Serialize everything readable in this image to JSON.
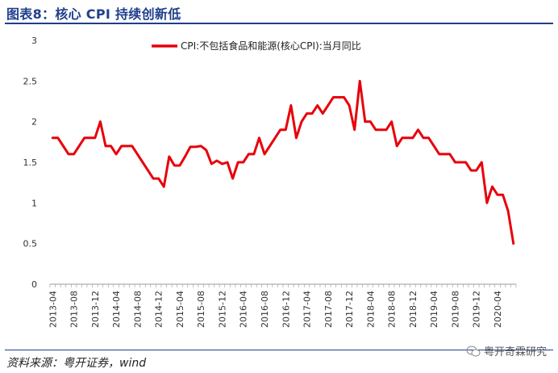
{
  "header": {
    "title": "图表8：核心 CPI 持续创新低"
  },
  "footer": {
    "source": "资料来源：粤开证券，wind",
    "watermark": "粤开奇霖研究"
  },
  "colors": {
    "title": "#1f3f8a",
    "series": "#e8000b"
  },
  "chart_data": {
    "type": "line",
    "ylim": [
      0,
      3
    ],
    "yticks": [
      0,
      0.5,
      1,
      1.5,
      2,
      2.5,
      3
    ],
    "grid": false,
    "legend_position": "top-center",
    "xlabel": "",
    "ylabel": "",
    "xtick_labels": [
      "2013-04",
      "2013-08",
      "2013-12",
      "2014-04",
      "2014-08",
      "2014-12",
      "2015-04",
      "2015-08",
      "2015-12",
      "2016-04",
      "2016-08",
      "2016-12",
      "2017-04",
      "2017-08",
      "2017-12",
      "2018-04",
      "2018-08",
      "2018-12",
      "2019-04",
      "2019-08",
      "2019-12",
      "2020-04"
    ],
    "x": [
      "2013-04",
      "2013-05",
      "2013-06",
      "2013-07",
      "2013-08",
      "2013-09",
      "2013-10",
      "2013-11",
      "2013-12",
      "2014-01",
      "2014-02",
      "2014-03",
      "2014-04",
      "2014-05",
      "2014-06",
      "2014-07",
      "2014-08",
      "2014-09",
      "2014-10",
      "2014-11",
      "2014-12",
      "2015-01",
      "2015-02",
      "2015-03",
      "2015-04",
      "2015-05",
      "2015-06",
      "2015-07",
      "2015-08",
      "2015-09",
      "2015-10",
      "2015-11",
      "2015-12",
      "2016-01",
      "2016-02",
      "2016-03",
      "2016-04",
      "2016-05",
      "2016-06",
      "2016-07",
      "2016-08",
      "2016-09",
      "2016-10",
      "2016-11",
      "2016-12",
      "2017-01",
      "2017-02",
      "2017-03",
      "2017-04",
      "2017-05",
      "2017-06",
      "2017-07",
      "2017-08",
      "2017-09",
      "2017-10",
      "2017-11",
      "2017-12",
      "2018-01",
      "2018-02",
      "2018-03",
      "2018-04",
      "2018-05",
      "2018-06",
      "2018-07",
      "2018-08",
      "2018-09",
      "2018-10",
      "2018-11",
      "2018-12",
      "2019-01",
      "2019-02",
      "2019-03",
      "2019-04",
      "2019-05",
      "2019-06",
      "2019-07",
      "2019-08",
      "2019-09",
      "2019-10",
      "2019-11",
      "2019-12",
      "2020-01",
      "2020-02",
      "2020-03",
      "2020-04",
      "2020-05",
      "2020-06",
      "2020-07"
    ],
    "series": [
      {
        "name": "CPI:不包括食品和能源(核心CPI):当月同比",
        "values": [
          1.8,
          1.8,
          1.7,
          1.6,
          1.6,
          1.7,
          1.8,
          1.8,
          1.8,
          2.0,
          1.7,
          1.7,
          1.6,
          1.7,
          1.7,
          1.7,
          1.6,
          1.5,
          1.4,
          1.3,
          1.3,
          1.2,
          1.57,
          1.46,
          1.46,
          1.57,
          1.69,
          1.69,
          1.7,
          1.65,
          1.48,
          1.52,
          1.48,
          1.5,
          1.3,
          1.5,
          1.5,
          1.6,
          1.6,
          1.8,
          1.6,
          1.7,
          1.8,
          1.9,
          1.9,
          2.2,
          1.8,
          2.0,
          2.1,
          2.1,
          2.2,
          2.1,
          2.2,
          2.3,
          2.3,
          2.3,
          2.2,
          1.9,
          2.5,
          2.0,
          2.0,
          1.9,
          1.9,
          1.9,
          2.0,
          1.7,
          1.8,
          1.8,
          1.8,
          1.9,
          1.8,
          1.8,
          1.7,
          1.6,
          1.6,
          1.6,
          1.5,
          1.5,
          1.5,
          1.4,
          1.4,
          1.5,
          1.0,
          1.2,
          1.1,
          1.1,
          0.9,
          0.5
        ]
      }
    ]
  }
}
